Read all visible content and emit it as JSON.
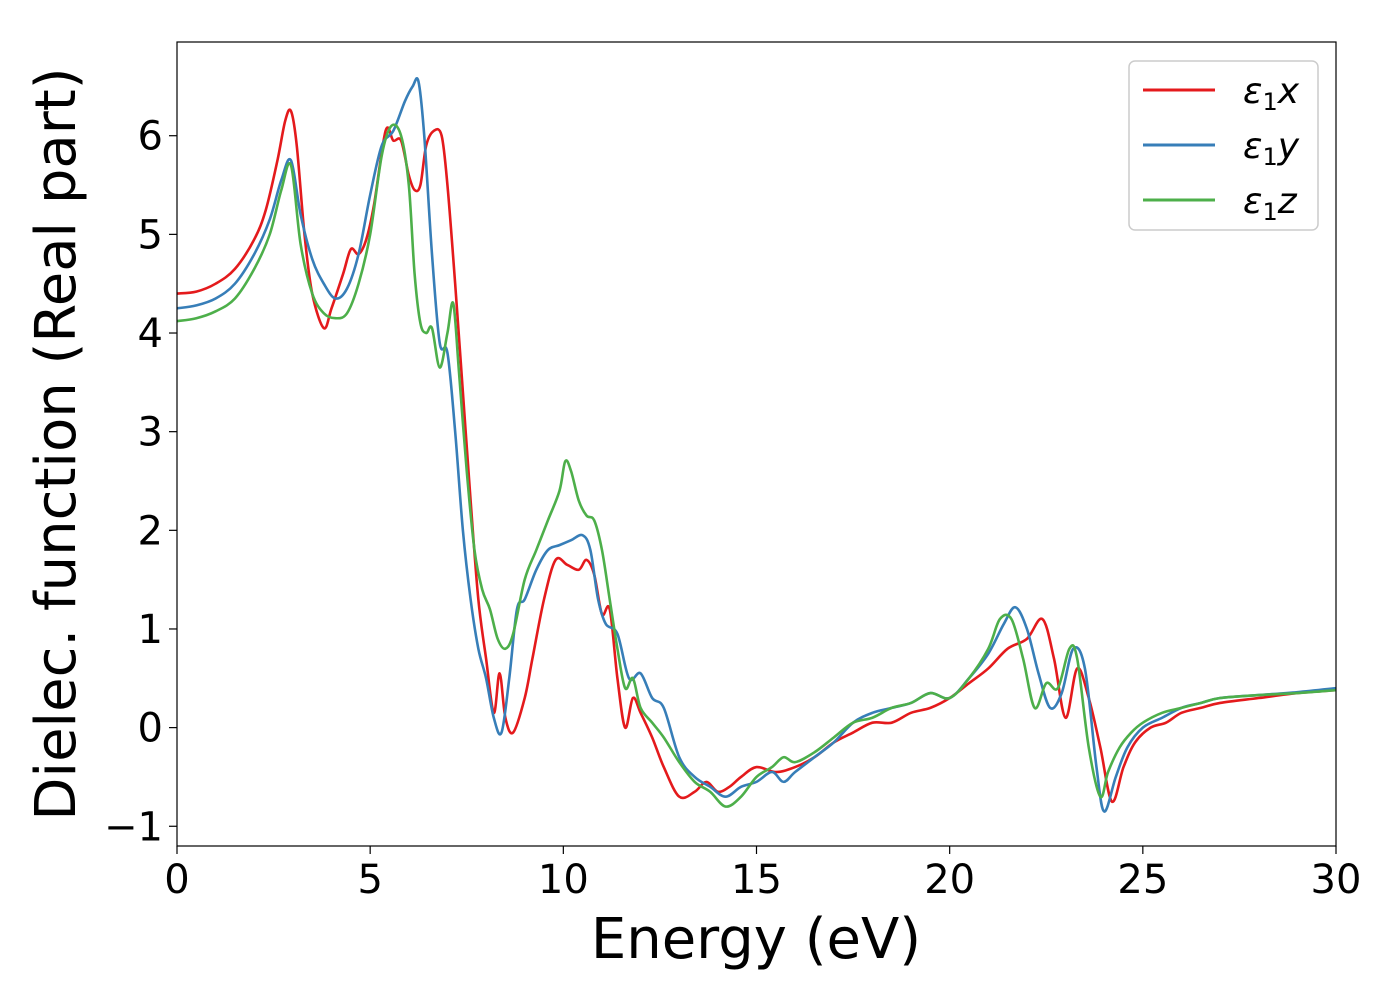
{
  "chart_data": {
    "type": "line",
    "title": "",
    "xlabel": "Energy (eV)",
    "ylabel": "Dielec. function (Real part)",
    "xlim": [
      0,
      30
    ],
    "ylim": [
      -1.2,
      6.95
    ],
    "xticks": [
      0,
      5,
      10,
      15,
      20,
      25,
      30
    ],
    "yticks": [
      -1,
      0,
      1,
      2,
      3,
      4,
      5,
      6
    ],
    "grid": false,
    "legend_position": "top-right",
    "series": [
      {
        "name_base": "ε",
        "name_sub": "1",
        "name_suffix": "x",
        "color": "#e41a1c",
        "x": [
          0,
          0.5,
          1,
          1.5,
          2,
          2.3,
          2.6,
          2.8,
          2.95,
          3.1,
          3.3,
          3.5,
          3.8,
          4.0,
          4.3,
          4.5,
          4.7,
          4.9,
          5.1,
          5.4,
          5.6,
          5.8,
          6.0,
          6.15,
          6.3,
          6.45,
          6.65,
          6.85,
          7.0,
          7.2,
          7.4,
          7.6,
          7.8,
          8.0,
          8.2,
          8.35,
          8.5,
          8.7,
          9.0,
          9.2,
          9.5,
          9.8,
          10.1,
          10.4,
          10.6,
          10.8,
          11.0,
          11.2,
          11.4,
          11.6,
          11.8,
          12.0,
          12.3,
          12.6,
          13.0,
          13.4,
          13.7,
          14.0,
          14.3,
          14.6,
          15.0,
          15.5,
          16.0,
          16.5,
          17.0,
          17.5,
          18.0,
          18.5,
          19.0,
          19.5,
          20.0,
          20.5,
          21.0,
          21.5,
          22.0,
          22.4,
          22.7,
          23.0,
          23.3,
          23.6,
          23.9,
          24.2,
          24.5,
          24.8,
          25.2,
          25.6,
          26.0,
          26.5,
          27.0,
          28.0,
          29.0,
          30.0
        ],
        "y": [
          4.4,
          4.42,
          4.5,
          4.65,
          4.95,
          5.25,
          5.75,
          6.15,
          6.25,
          5.9,
          5.0,
          4.4,
          4.05,
          4.25,
          4.6,
          4.85,
          4.8,
          4.95,
          5.3,
          6.05,
          5.95,
          5.95,
          5.6,
          5.45,
          5.5,
          5.9,
          6.05,
          6.0,
          5.5,
          4.5,
          3.4,
          2.3,
          1.3,
          0.7,
          0.15,
          0.55,
          0.1,
          -0.05,
          0.3,
          0.7,
          1.3,
          1.7,
          1.65,
          1.6,
          1.7,
          1.55,
          1.15,
          1.2,
          0.5,
          0.0,
          0.3,
          0.15,
          -0.1,
          -0.4,
          -0.7,
          -0.65,
          -0.55,
          -0.65,
          -0.6,
          -0.5,
          -0.4,
          -0.45,
          -0.4,
          -0.3,
          -0.15,
          -0.05,
          0.05,
          0.05,
          0.15,
          0.2,
          0.3,
          0.45,
          0.6,
          0.8,
          0.9,
          1.1,
          0.7,
          0.1,
          0.6,
          0.3,
          -0.2,
          -0.75,
          -0.4,
          -0.15,
          0.0,
          0.05,
          0.15,
          0.2,
          0.25,
          0.3,
          0.35,
          0.38
        ]
      },
      {
        "name_base": "ε",
        "name_sub": "1",
        "name_suffix": "y",
        "color": "#377eb8",
        "x": [
          0,
          0.5,
          1,
          1.5,
          2,
          2.4,
          2.7,
          2.95,
          3.2,
          3.5,
          3.8,
          4.1,
          4.4,
          4.7,
          5.0,
          5.3,
          5.6,
          5.9,
          6.1,
          6.25,
          6.4,
          6.6,
          6.8,
          7.0,
          7.2,
          7.4,
          7.6,
          7.8,
          8.0,
          8.2,
          8.4,
          8.6,
          8.8,
          9.0,
          9.3,
          9.6,
          9.9,
          10.2,
          10.5,
          10.7,
          10.9,
          11.1,
          11.4,
          11.7,
          12.0,
          12.3,
          12.6,
          13.0,
          13.4,
          13.8,
          14.2,
          14.6,
          15.0,
          15.4,
          15.7,
          16.0,
          16.5,
          17.0,
          17.5,
          18.0,
          18.5,
          19.0,
          19.5,
          20.0,
          20.5,
          21.0,
          21.4,
          21.7,
          22.0,
          22.3,
          22.6,
          22.9,
          23.2,
          23.5,
          23.8,
          24.0,
          24.3,
          24.6,
          25.0,
          25.5,
          26.0,
          26.5,
          27.0,
          28.0,
          29.0,
          30.0
        ],
        "y": [
          4.25,
          4.28,
          4.35,
          4.5,
          4.8,
          5.15,
          5.55,
          5.75,
          5.2,
          4.75,
          4.5,
          4.35,
          4.45,
          4.8,
          5.4,
          5.9,
          6.05,
          6.35,
          6.5,
          6.55,
          6.0,
          4.8,
          3.9,
          3.8,
          3.0,
          2.0,
          1.3,
          0.8,
          0.5,
          0.1,
          -0.05,
          0.5,
          1.2,
          1.3,
          1.6,
          1.8,
          1.85,
          1.9,
          1.95,
          1.8,
          1.3,
          1.05,
          0.95,
          0.5,
          0.55,
          0.3,
          0.2,
          -0.3,
          -0.5,
          -0.6,
          -0.7,
          -0.6,
          -0.55,
          -0.45,
          -0.55,
          -0.45,
          -0.3,
          -0.15,
          0.05,
          0.15,
          0.2,
          0.25,
          0.35,
          0.3,
          0.5,
          0.75,
          1.05,
          1.22,
          1.0,
          0.55,
          0.2,
          0.35,
          0.8,
          0.6,
          -0.4,
          -0.85,
          -0.5,
          -0.2,
          0.0,
          0.1,
          0.2,
          0.25,
          0.3,
          0.33,
          0.36,
          0.4
        ]
      },
      {
        "name_base": "ε",
        "name_sub": "1",
        "name_suffix": "z",
        "color": "#4daf4a",
        "x": [
          0,
          0.5,
          1,
          1.5,
          2,
          2.4,
          2.7,
          2.95,
          3.2,
          3.5,
          3.8,
          4.1,
          4.4,
          4.7,
          5.0,
          5.3,
          5.55,
          5.8,
          6.0,
          6.15,
          6.3,
          6.45,
          6.6,
          6.8,
          7.0,
          7.15,
          7.3,
          7.5,
          7.7,
          7.9,
          8.1,
          8.3,
          8.5,
          8.7,
          9.0,
          9.3,
          9.6,
          9.9,
          10.05,
          10.2,
          10.4,
          10.6,
          10.8,
          11.0,
          11.2,
          11.4,
          11.6,
          11.8,
          12.0,
          12.3,
          12.6,
          13.0,
          13.4,
          13.8,
          14.2,
          14.6,
          15.0,
          15.4,
          15.7,
          16.0,
          16.5,
          17.0,
          17.5,
          18.0,
          18.5,
          19.0,
          19.5,
          20.0,
          20.5,
          21.0,
          21.3,
          21.6,
          21.9,
          22.2,
          22.5,
          22.8,
          23.1,
          23.3,
          23.6,
          23.9,
          24.1,
          24.4,
          24.7,
          25.0,
          25.5,
          26.0,
          26.5,
          27.0,
          28.0,
          29.0,
          30.0
        ],
        "y": [
          4.12,
          4.15,
          4.22,
          4.35,
          4.65,
          5.0,
          5.45,
          5.7,
          4.9,
          4.4,
          4.2,
          4.15,
          4.2,
          4.5,
          5.0,
          5.8,
          6.1,
          6.0,
          5.5,
          4.6,
          4.1,
          4.0,
          4.05,
          3.65,
          4.0,
          4.3,
          3.6,
          2.6,
          1.8,
          1.4,
          1.2,
          0.9,
          0.8,
          0.95,
          1.5,
          1.8,
          2.1,
          2.4,
          2.7,
          2.6,
          2.3,
          2.15,
          2.1,
          1.8,
          1.3,
          0.8,
          0.4,
          0.5,
          0.2,
          0.05,
          -0.1,
          -0.35,
          -0.55,
          -0.65,
          -0.8,
          -0.7,
          -0.5,
          -0.4,
          -0.3,
          -0.35,
          -0.25,
          -0.1,
          0.05,
          0.1,
          0.2,
          0.25,
          0.35,
          0.3,
          0.5,
          0.8,
          1.1,
          1.1,
          0.7,
          0.2,
          0.45,
          0.4,
          0.8,
          0.7,
          -0.2,
          -0.7,
          -0.45,
          -0.2,
          -0.05,
          0.05,
          0.15,
          0.2,
          0.25,
          0.3,
          0.33,
          0.35,
          0.38
        ]
      }
    ]
  }
}
